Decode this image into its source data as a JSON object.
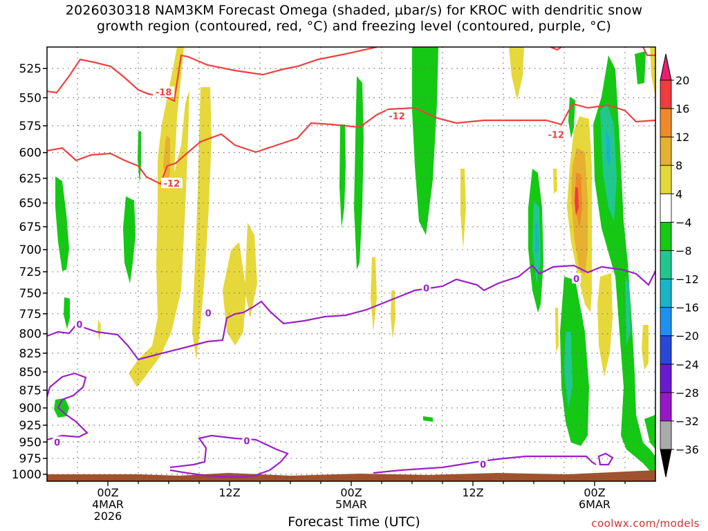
{
  "title_line1": "2026030318 NAM3KM Forecast Omega (shaded, µbar/s) for KROC with dendritic snow",
  "title_line2": "growth region (contoured, red, °C) and freezing level (contoured, purple, °C)",
  "xlabel": "Forecast Time (UTC)",
  "credit": "coolwx.com/models",
  "colors": {
    "ground": "#a0522d",
    "dendritic_contour": "#ef4040",
    "freezing_contour": "#9b1fc8",
    "grid": "#707070"
  },
  "chart_data": {
    "type": "heatmap",
    "y_levels_hPa": [
      525,
      550,
      575,
      600,
      625,
      650,
      675,
      700,
      725,
      750,
      775,
      800,
      825,
      850,
      875,
      900,
      925,
      950,
      975,
      1000
    ],
    "x_ticks": [
      {
        "label": [
          "00Z",
          "4MAR",
          "2026"
        ],
        "hour": 21
      },
      {
        "label": [
          "12Z"
        ],
        "hour": 33
      },
      {
        "label": [
          "00Z",
          "5MAR"
        ],
        "hour": 45
      },
      {
        "label": [
          "12Z"
        ],
        "hour": 57
      },
      {
        "label": [
          "00Z",
          "6MAR"
        ],
        "hour": 69
      }
    ],
    "x_range_hours": [
      15,
      75
    ],
    "colorbar": {
      "labels": [
        20,
        16,
        12,
        8,
        4,
        -4,
        -8,
        -12,
        -16,
        -20,
        -24,
        -28,
        -32,
        -36
      ],
      "colors": [
        "#e8206e",
        "#f03c3c",
        "#f08a28",
        "#e6b030",
        "#e6d83a",
        "#ffffff",
        "#14c814",
        "#20c890",
        "#18b4c8",
        "#1e90f0",
        "#2848d8",
        "#6a1ad0",
        "#9818c8",
        "#aaaaaa",
        "#000000"
      ]
    },
    "contour_labels": [
      {
        "value": "-18",
        "hour": 26.5,
        "hPa": 545,
        "color": "red"
      },
      {
        "value": "-12",
        "hour": 27.3,
        "hPa": 630,
        "color": "red"
      },
      {
        "value": "-12",
        "hour": 49.5,
        "hPa": 566,
        "color": "red"
      },
      {
        "value": "-12",
        "hour": 65.2,
        "hPa": 583,
        "color": "red"
      },
      {
        "value": "0",
        "hour": 18.2,
        "hPa": 788,
        "color": "purple"
      },
      {
        "value": "0",
        "hour": 30.9,
        "hPa": 774,
        "color": "purple"
      },
      {
        "value": "0",
        "hour": 52.4,
        "hPa": 744,
        "color": "purple"
      },
      {
        "value": "0",
        "hour": 67.2,
        "hPa": 733,
        "color": "purple"
      },
      {
        "value": "0",
        "hour": 16.0,
        "hPa": 950,
        "color": "purple"
      },
      {
        "value": "0",
        "hour": 34.7,
        "hPa": 948,
        "color": "purple"
      },
      {
        "value": "0",
        "hour": 58.0,
        "hPa": 984,
        "color": "purple"
      }
    ]
  }
}
